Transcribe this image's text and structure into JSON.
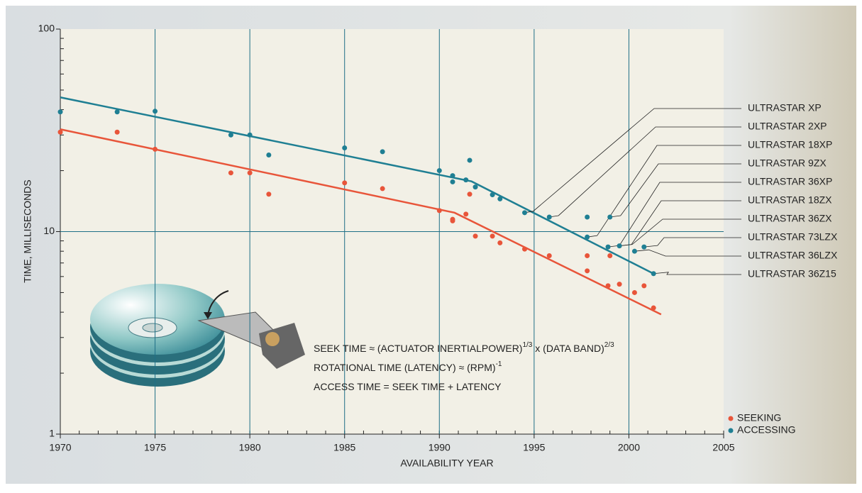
{
  "chart_data": {
    "type": "scatter",
    "xlabel": "AVAILABILITY  YEAR",
    "ylabel": "TIME, MILLISECONDS",
    "log_y": true,
    "grid": true,
    "xlim": [
      1970,
      2005
    ],
    "xticks": [
      1970,
      1975,
      1980,
      1985,
      1990,
      1995,
      2000,
      2005
    ],
    "ylim": [
      1,
      100
    ],
    "yticks": [
      1,
      10,
      100
    ],
    "x": [
      1970,
      1973,
      1975,
      1979,
      1980,
      1981,
      1985,
      1987,
      1990,
      1990.7,
      1990.7,
      1991.4,
      1991.6,
      1991.9,
      1992.8,
      1993.2,
      1994.5,
      1995.8,
      1997.8,
      1997.8,
      1999,
      1998.9,
      1999.5,
      2000.3,
      2000.8,
      2001.3
    ],
    "series": [
      {
        "name": "SEEKING",
        "color": "#e8553a",
        "values": [
          31,
          31,
          25.5,
          19.5,
          19.5,
          15.3,
          17.4,
          16.3,
          12.7,
          11.5,
          11.3,
          12.2,
          15.3,
          9.5,
          9.5,
          8.8,
          8.2,
          7.6,
          7.6,
          6.4,
          7.6,
          5.4,
          5.5,
          5.0,
          5.4,
          4.2
        ]
      },
      {
        "name": "ACCESSING",
        "color": "#1f7f93",
        "values": [
          39,
          39,
          39.3,
          30,
          30,
          23.9,
          25.9,
          24.8,
          20,
          18.9,
          17.6,
          18,
          22.5,
          16.6,
          15.2,
          14.5,
          12.4,
          11.8,
          11.8,
          9.4,
          11.8,
          8.4,
          8.5,
          8.0,
          8.4,
          6.2
        ]
      }
    ],
    "trend_lines": [
      {
        "color": "#e8553a",
        "x": [
          1970,
          1990.8,
          2001.7
        ],
        "values": [
          32,
          12.4,
          3.9
        ]
      },
      {
        "color": "#1f7f93",
        "x": [
          1970,
          1991.7,
          2001.3
        ],
        "values": [
          46,
          17.7,
          6.2
        ]
      }
    ],
    "annotations": [
      "ULTRASTAR XP",
      "ULTRASTAR 2XP",
      "ULTRASTAR 18XP",
      "ULTRASTAR 9ZX",
      "ULTRASTAR 36XP",
      "ULTRASTAR 18ZX",
      "ULTRASTAR 36ZX",
      "ULTRASTAR 73LZX",
      "ULTRASTAR 36LZX",
      "ULTRASTAR 36Z15"
    ],
    "formulas": [
      [
        "SEEK TIME ≈ (ACTUATOR INERTIALPOWER)",
        "1/3",
        " x (DATA BAND)",
        "2/3"
      ],
      [
        "ROTATIONAL TIME (LATENCY) ≈ (RPM)",
        "-1"
      ],
      [
        "ACCESS TIME = SEEK TIME + LATENCY"
      ]
    ]
  }
}
